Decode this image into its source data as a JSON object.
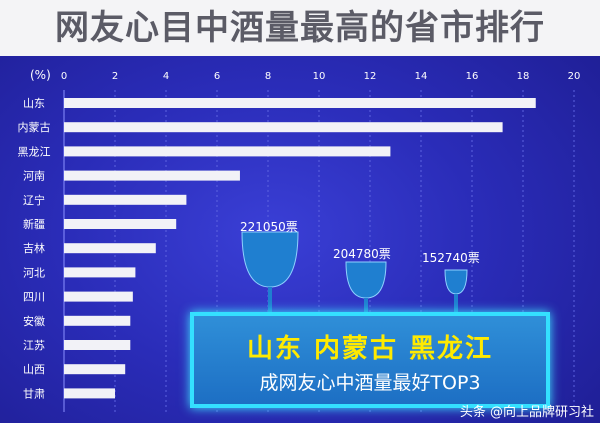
{
  "title": "网友心目中酒量最高的省市排行",
  "chart_data": {
    "type": "bar",
    "orientation": "horizontal",
    "axis_unit_label": "(%)",
    "xlim": [
      0,
      20
    ],
    "x_ticks": [
      0,
      2,
      4,
      6,
      8,
      10,
      12,
      14,
      16,
      18,
      20
    ],
    "categories": [
      "山东",
      "内蒙古",
      "黑龙江",
      "河南",
      "辽宁",
      "新疆",
      "吉林",
      "河北",
      "四川",
      "安徽",
      "江苏",
      "山西",
      "甘肃"
    ],
    "values": [
      18.5,
      17.2,
      12.8,
      6.9,
      4.8,
      4.4,
      3.6,
      2.8,
      2.7,
      2.6,
      2.6,
      2.4,
      2.0
    ],
    "grid": true,
    "bar_color": "#f2f2f7"
  },
  "glasses": [
    {
      "votes": "221050票",
      "size": "large"
    },
    {
      "votes": "204780票",
      "size": "medium"
    },
    {
      "votes": "152740票",
      "size": "small"
    }
  ],
  "callout": {
    "top3": "山东  内蒙古  黑龙江",
    "caption": "成网友心中酒量最好TOP3"
  },
  "watermark": "头条 @向上品牌研习社",
  "colors": {
    "background": "#2a2cb8",
    "callout_border": "#34e0ff",
    "callout_text": "#ffea00",
    "glass": "#1f7fd0"
  }
}
